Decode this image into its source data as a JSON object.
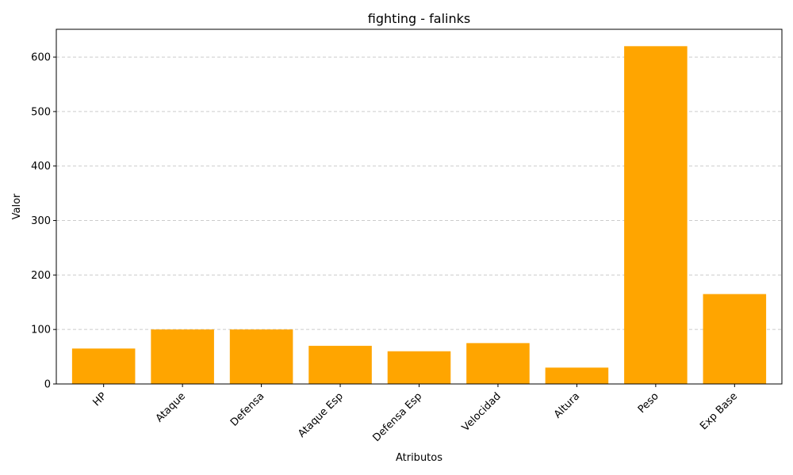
{
  "chart_data": {
    "type": "bar",
    "title": "fighting - falinks",
    "xlabel": "Atributos",
    "ylabel": "Valor",
    "categories": [
      "HP",
      "Ataque",
      "Defensa",
      "Ataque Esp",
      "Defensa Esp",
      "Velocidad",
      "Altura",
      "Peso",
      "Exp Base"
    ],
    "values": [
      65,
      100,
      100,
      70,
      60,
      75,
      30,
      620,
      165
    ],
    "ylim": [
      0,
      651
    ],
    "yticks": [
      0,
      100,
      200,
      300,
      400,
      500,
      600
    ],
    "ytick_labels": [
      "0",
      "100",
      "200",
      "300",
      "400",
      "500",
      "600"
    ],
    "bar_color": "#ffa500",
    "grid": "y-dashed",
    "legend": "none"
  }
}
